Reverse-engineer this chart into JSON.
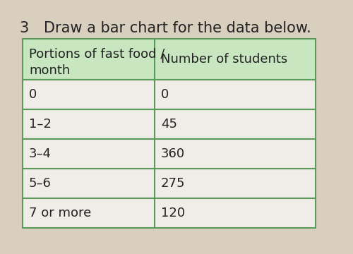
{
  "title_number": "3",
  "title_text": "Draw a bar chart for the data below.",
  "col1_header": "Portions of fast food /\nmonth",
  "col2_header": "Number of students",
  "rows": [
    [
      "0",
      "0"
    ],
    [
      "1–2",
      "45"
    ],
    [
      "3–4",
      "360"
    ],
    [
      "5–6",
      "275"
    ],
    [
      "7 or more",
      "120"
    ]
  ],
  "background_color": "#e8e0d0",
  "page_bg": "#d8cfbf",
  "header_bg": "#c8e6c0",
  "row_bg": "#f0ede8",
  "border_color": "#5a9a5a",
  "text_color": "#222222",
  "title_fontsize": 15,
  "cell_fontsize": 13,
  "header_fontsize": 13
}
